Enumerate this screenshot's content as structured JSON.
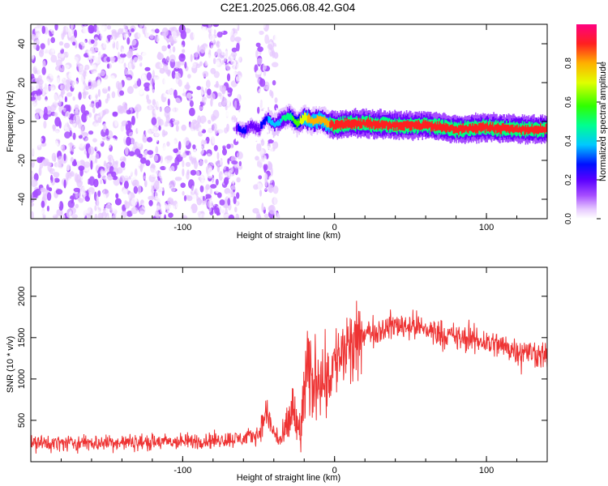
{
  "title": "C2E1.2025.066.08.42.G04",
  "chart_data": [
    {
      "type": "heatmap",
      "xlabel": "Height of straight line (km)",
      "ylabel": "Frequency (Hz)",
      "xlim": [
        -200,
        140
      ],
      "ylim": [
        -50,
        50
      ],
      "x_ticks": [
        -100,
        0,
        100
      ],
      "y_ticks": [
        -40,
        -20,
        0,
        20,
        40
      ],
      "colorbar": {
        "label": "Normalized spectral amplitude",
        "range": [
          0,
          1
        ],
        "ticks": [
          0.0,
          0.2,
          0.4,
          0.6,
          0.8
        ],
        "tick_labels": [
          "0.0",
          "0.2",
          "0.4",
          "0.6",
          "0.8"
        ],
        "colors": [
          "#ffffff",
          "#e6c8ff",
          "#a64dff",
          "#6a00ff",
          "#0000ff",
          "#00c8ff",
          "#00ff80",
          "#40ff00",
          "#e0ff00",
          "#ffb000",
          "#ff2020",
          "#ff0080"
        ]
      },
      "ridge": {
        "x": [
          -65,
          -60,
          -55,
          -50,
          -45,
          -40,
          -35,
          -30,
          -25,
          -20,
          -15,
          -10,
          -5,
          0,
          10,
          20,
          40,
          60,
          80,
          100,
          120,
          140
        ],
        "frequency": [
          -3,
          -5,
          -2,
          -4,
          2,
          -2,
          1,
          3,
          -1,
          2,
          0,
          1,
          -1,
          -2,
          -1,
          -1,
          -2,
          -2,
          -4,
          -3,
          -4,
          -4
        ],
        "amplitude": [
          0.35,
          0.4,
          0.3,
          0.35,
          0.45,
          0.5,
          0.55,
          0.6,
          0.7,
          0.8,
          0.85,
          0.9,
          0.9,
          0.95,
          0.95,
          0.95,
          0.95,
          0.95,
          0.95,
          0.95,
          0.95,
          0.95
        ]
      },
      "noise_regions": [
        [
          -200,
          -62
        ],
        [
          -52,
          -37
        ]
      ]
    },
    {
      "type": "line",
      "xlabel": "Height of straight line (km)",
      "ylabel": "SNR (10 * v/v)",
      "xlim": [
        -200,
        140
      ],
      "ylim": [
        0,
        2350
      ],
      "x_ticks": [
        -100,
        0,
        100
      ],
      "y_ticks": [
        500,
        1000,
        1500,
        2000
      ],
      "color": "#ee3333",
      "envelope": {
        "x": [
          -200,
          -150,
          -100,
          -80,
          -60,
          -50,
          -45,
          -40,
          -35,
          -30,
          -28,
          -25,
          -22,
          -20,
          -18,
          -15,
          -10,
          -5,
          0,
          5,
          10,
          15,
          20,
          30,
          40,
          50,
          60,
          80,
          100,
          120,
          140
        ],
        "mean": [
          220,
          230,
          240,
          260,
          280,
          330,
          600,
          350,
          250,
          450,
          700,
          400,
          350,
          900,
          1000,
          950,
          1100,
          1000,
          1200,
          1300,
          1350,
          1400,
          1550,
          1600,
          1650,
          1650,
          1600,
          1500,
          1450,
          1350,
          1280
        ],
        "amp": [
          150,
          150,
          150,
          150,
          150,
          150,
          350,
          200,
          200,
          450,
          700,
          500,
          600,
          700,
          900,
          800,
          700,
          700,
          650,
          700,
          800,
          700,
          250,
          250,
          250,
          250,
          250,
          250,
          250,
          250,
          250
        ]
      }
    }
  ]
}
